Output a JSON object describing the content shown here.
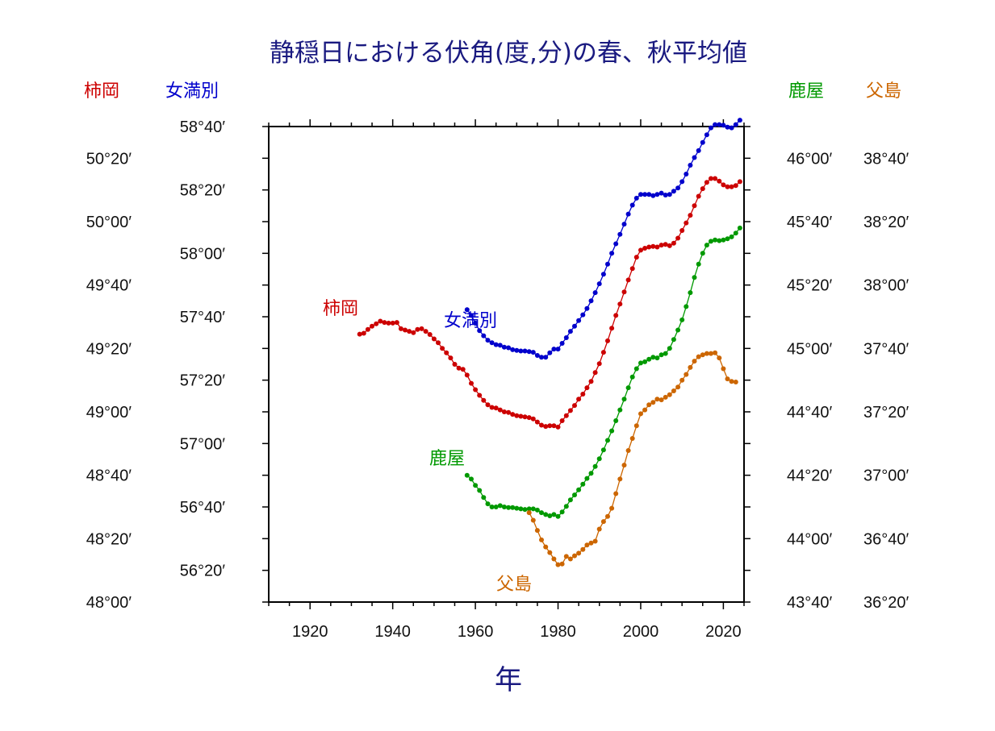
{
  "chart_data": {
    "type": "line",
    "title": "静穏日における伏角(度,分)の春、秋平均値",
    "xlabel": "年",
    "xlim": [
      1910,
      2025
    ],
    "x_ticks": [
      "1920",
      "1940",
      "1960",
      "1980",
      "2000",
      "2020"
    ],
    "grid": false,
    "legend": "none",
    "y_axes": [
      {
        "station": "柿岡",
        "side": "left-outer",
        "color": "#cc0000",
        "ticks": [
          "48°00′",
          "48°20′",
          "48°40′",
          "49°00′",
          "49°20′",
          "49°40′",
          "50°00′",
          "50°20′"
        ]
      },
      {
        "station": "女満別",
        "side": "left-inner",
        "color": "#0000cc",
        "ticks": [
          "56°20′",
          "56°40′",
          "57°00′",
          "57°20′",
          "57°40′",
          "58°00′",
          "58°20′",
          "58°40′"
        ]
      },
      {
        "station": "鹿屋",
        "side": "right-inner",
        "color": "#009900",
        "ticks": [
          "43°40′",
          "44°00′",
          "44°20′",
          "44°40′",
          "45°00′",
          "45°20′",
          "45°40′",
          "46°00′"
        ]
      },
      {
        "station": "父島",
        "side": "right-outer",
        "color": "#cc6600",
        "ticks": [
          "36°20′",
          "36°40′",
          "37°00′",
          "37°20′",
          "37°40′",
          "38°00′",
          "38°20′",
          "38°40′"
        ]
      }
    ],
    "series": [
      {
        "name": "柿岡",
        "color": "#cc0000",
        "axis_min_deg": 48.0,
        "axis_step_deg": 0.3333333,
        "x": [
          1932,
          1933,
          1934,
          1935,
          1936,
          1937,
          1938,
          1939,
          1940,
          1941,
          1942,
          1943,
          1944,
          1945,
          1946,
          1947,
          1948,
          1949,
          1950,
          1951,
          1952,
          1953,
          1954,
          1955,
          1956,
          1957,
          1958,
          1959,
          1960,
          1961,
          1962,
          1963,
          1964,
          1965,
          1966,
          1967,
          1968,
          1969,
          1970,
          1971,
          1972,
          1973,
          1974,
          1975,
          1976,
          1977,
          1978,
          1979,
          1980,
          1981,
          1982,
          1983,
          1984,
          1985,
          1986,
          1987,
          1988,
          1989,
          1990,
          1991,
          1992,
          1993,
          1994,
          1995,
          1996,
          1997,
          1998,
          1999,
          2000,
          2001,
          2002,
          2003,
          2004,
          2005,
          2006,
          2007,
          2008,
          2009,
          2010,
          2011,
          2012,
          2013,
          2014,
          2015,
          2016,
          2017,
          2018,
          2019,
          2020,
          2021,
          2022,
          2023,
          2024
        ],
        "y": [
          "49°24.5′",
          "49°24.8′",
          "49°26.0′",
          "49°27.0′",
          "49°27.8′",
          "49°28.6′",
          "49°28.2′",
          "49°28.0′",
          "49°28.0′",
          "49°28.2′",
          "49°26.2′",
          "49°25.8′",
          "49°25.4′",
          "49°25.0′",
          "49°26.0′",
          "49°26.2′",
          "49°25.4′",
          "49°24.4′",
          "49°23.0′",
          "49°21.8′",
          "49°20.0′",
          "49°18.6′",
          "49°17.0′",
          "49°15.0′",
          "49°13.8′",
          "49°13.4′",
          "49°11.6′",
          "49°09.0′",
          "49°07.0′",
          "49°05.2′",
          "49°03.6′",
          "49°02.2′",
          "49°01.4′",
          "49°01.2′",
          "49°00.6′",
          "49°00.0′",
          "48°59.8′",
          "48°59.2′",
          "48°58.8′",
          "48°58.6′",
          "48°58.4′",
          "48°58.2′",
          "48°57.8′",
          "48°56.8′",
          "48°55.8′",
          "48°55.4′",
          "48°55.6′",
          "48°55.6′",
          "48°55.2′",
          "48°57.2′",
          "48°58.8′",
          "49°00.4′",
          "49°02.0′",
          "49°04.0′",
          "49°05.6′",
          "49°07.6′",
          "49°09.6′",
          "49°12.4′",
          "49°15.2′",
          "49°18.8′",
          "49°22.4′",
          "49°26.4′",
          "49°30.4′",
          "49°34.0′",
          "49°37.8′",
          "49°41.6′",
          "49°45.2′",
          "49°48.8′",
          "49°51.0′",
          "49°51.6′",
          "49°52.0′",
          "49°52.2′",
          "49°52.0′",
          "49°52.6′",
          "49°52.8′",
          "49°52.4′",
          "49°53.2′",
          "49°54.8′",
          "49°57.2′",
          "49°59.6′",
          "50°02.0′",
          "50°05.0′",
          "50°08.0′",
          "50°10.4′",
          "50°12.4′",
          "50°13.6′",
          "50°13.6′",
          "50°12.8′",
          "50°11.6′",
          "50°11.0′",
          "50°11.0′",
          "50°11.4′",
          "50°12.6′"
        ]
      },
      {
        "name": "女満別",
        "color": "#0000cc",
        "axis_min_deg": 56.0,
        "axis_step_deg": 0.3333333,
        "x": [
          1958,
          1959,
          1960,
          1961,
          1962,
          1963,
          1964,
          1965,
          1966,
          1967,
          1968,
          1969,
          1970,
          1971,
          1972,
          1973,
          1974,
          1975,
          1976,
          1977,
          1978,
          1979,
          1980,
          1981,
          1982,
          1983,
          1984,
          1985,
          1986,
          1987,
          1988,
          1989,
          1990,
          1991,
          1992,
          1993,
          1994,
          1995,
          1996,
          1997,
          1998,
          1999,
          2000,
          2001,
          2002,
          2003,
          2004,
          2005,
          2006,
          2007,
          2008,
          2009,
          2010,
          2011,
          2012,
          2013,
          2014,
          2015,
          2016,
          2017,
          2018,
          2019,
          2020,
          2021,
          2022,
          2023,
          2024
        ],
        "y": [
          "57°32.2′",
          "57°30.4′",
          "57°28.0′",
          "57°25.6′",
          "57°24.0′",
          "57°22.6′",
          "57°21.8′",
          "57°21.2′",
          "57°21.0′",
          "57°20.4′",
          "57°20.2′",
          "57°19.6′",
          "57°19.4′",
          "57°19.2′",
          "57°19.2′",
          "57°19.0′",
          "57°18.8′",
          "57°17.8′",
          "57°17.2′",
          "57°17.2′",
          "57°18.6′",
          "57°19.8′",
          "57°19.8′",
          "57°21.6′",
          "57°23.4′",
          "57°25.4′",
          "57°27.0′",
          "57°28.8′",
          "57°30.6′",
          "57°32.6′",
          "57°35.0′",
          "57°37.6′",
          "57°40.4′",
          "57°43.4′",
          "57°46.6′",
          "57°50.0′",
          "57°53.0′",
          "57°56.0′",
          "57°59.2′",
          "58°02.4′",
          "58°05.2′",
          "58°07.4′",
          "58°08.6′",
          "58°08.6′",
          "58°08.6′",
          "58°08.2′",
          "58°08.6′",
          "58°09.0′",
          "58°08.4′",
          "58°08.6′",
          "58°09.6′",
          "58°10.6′",
          "58°12.6′",
          "58°15.0′",
          "58°17.8′",
          "58°20.2′",
          "58°22.4′",
          "58°25.0′",
          "58°27.4′",
          "58°29.6′",
          "58°30.6′",
          "58°30.6′",
          "58°30.4′",
          "58°29.8′",
          "58°29.6′",
          "58°30.6′",
          "58°32.0′"
        ]
      },
      {
        "name": "鹿屋",
        "color": "#009900",
        "axis_min_deg": 43.6666667,
        "axis_step_deg": 0.3333333,
        "x": [
          1958,
          1959,
          1960,
          1961,
          1962,
          1963,
          1964,
          1965,
          1966,
          1967,
          1968,
          1969,
          1970,
          1971,
          1972,
          1973,
          1974,
          1975,
          1976,
          1977,
          1978,
          1979,
          1980,
          1981,
          1982,
          1983,
          1984,
          1985,
          1986,
          1987,
          1988,
          1989,
          1990,
          1991,
          1992,
          1993,
          1994,
          1995,
          1996,
          1997,
          1998,
          1999,
          2000,
          2001,
          2002,
          2003,
          2004,
          2005,
          2006,
          2007,
          2008,
          2009,
          2010,
          2011,
          2012,
          2013,
          2014,
          2015,
          2016,
          2017,
          2018,
          2019,
          2020,
          2021,
          2022,
          2023,
          2024
        ],
        "y": [
          "44°20.0′",
          "44°18.8′",
          "44°16.8′",
          "44°15.2′",
          "44°13.0′",
          "44°11.0′",
          "44°10.0′",
          "44°10.0′",
          "44°10.4′",
          "44°10.0′",
          "44°09.8′",
          "44°09.8′",
          "44°09.6′",
          "44°09.4′",
          "44°09.2′",
          "44°09.4′",
          "44°09.4′",
          "44°09.0′",
          "44°08.2′",
          "44°07.6′",
          "44°07.2′",
          "44°07.6′",
          "44°07.0′",
          "44°08.4′",
          "44°10.2′",
          "44°12.2′",
          "44°13.8′",
          "44°15.4′",
          "44°17.2′",
          "44°19.0′",
          "44°20.6′",
          "44°22.8′",
          "44°25.2′",
          "44°28.0′",
          "44°31.0′",
          "44°34.0′",
          "44°37.2′",
          "44°40.6′",
          "44°44.0′",
          "44°47.6′",
          "44°51.0′",
          "44°53.6′",
          "44°55.4′",
          "44°55.8′",
          "44°56.6′",
          "44°57.2′",
          "44°57.0′",
          "44°58.0′",
          "44°58.4′",
          "45°00.0′",
          "45°02.8′",
          "45°05.8′",
          "45°09.0′",
          "45°13.2′",
          "45°17.6′",
          "45°22.4′",
          "45°26.6′",
          "45°30.0′",
          "45°32.6′",
          "45°33.8′",
          "45°34.2′",
          "45°34.0′",
          "45°34.2′",
          "45°34.6′",
          "45°35.2′",
          "45°36.4′",
          "45°38.0′"
        ]
      },
      {
        "name": "父島",
        "color": "#cc6600",
        "axis_min_deg": 36.3333333,
        "axis_step_deg": 0.3333333,
        "x": [
          1973,
          1974,
          1975,
          1976,
          1977,
          1978,
          1979,
          1980,
          1981,
          1982,
          1983,
          1984,
          1985,
          1986,
          1987,
          1988,
          1989,
          1990,
          1991,
          1992,
          1993,
          1994,
          1995,
          1996,
          1997,
          1998,
          1999,
          2000,
          2001,
          2002,
          2003,
          2004,
          2005,
          2006,
          2007,
          2008,
          2009,
          2010,
          2011,
          2012,
          2013,
          2014,
          2015,
          2016,
          2017,
          2018,
          2019,
          2020,
          2021,
          2022,
          2023
        ],
        "y": [
          "36°48.2′",
          "36°45.8′",
          "36°42.6′",
          "36°39.6′",
          "36°37.4′",
          "36°35.6′",
          "36°33.6′",
          "36°31.8′",
          "36°32.0′",
          "36°34.4′",
          "36°33.6′",
          "36°34.6′",
          "36°35.4′",
          "36°36.6′",
          "36°38.0′",
          "36°38.6′",
          "36°39.2′",
          "36°43.0′",
          "36°45.4′",
          "36°47.0′",
          "36°49.6′",
          "36°54.2′",
          "36°58.8′",
          "37°03.2′",
          "37°07.8′",
          "37°11.6′",
          "37°15.6′",
          "37°19.4′",
          "37°20.6′",
          "37°22.2′",
          "37°23.0′",
          "37°24.0′",
          "37°23.8′",
          "37°24.6′",
          "37°25.4′",
          "37°26.6′",
          "37°27.8′",
          "37°30.0′",
          "37°31.8′",
          "37°34.0′",
          "37°36.0′",
          "37°37.4′",
          "37°38.0′",
          "37°38.4′",
          "37°38.4′",
          "37°38.6′",
          "37°37.0′",
          "37°33.6′",
          "37°30.4′",
          "37°29.6′",
          "37°29.4′"
        ]
      }
    ]
  }
}
